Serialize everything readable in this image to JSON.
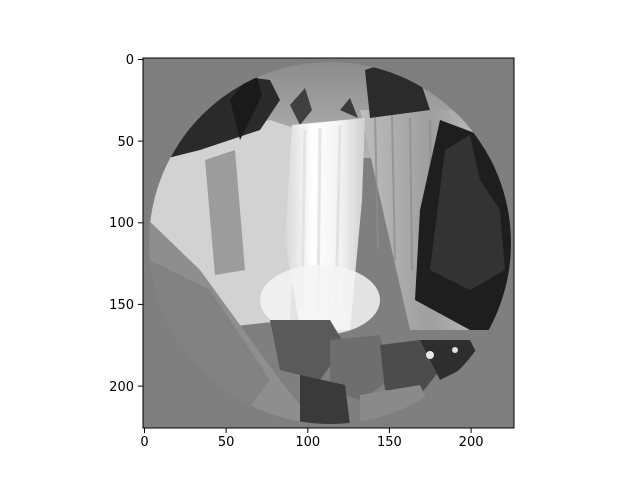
{
  "image": {
    "subject": "waterfall",
    "colormap": "grayscale",
    "background_color": "#7f7f7f",
    "mask": "circle"
  },
  "axes": {
    "x_ticks": [
      "0",
      "50",
      "100",
      "150",
      "200"
    ],
    "y_ticks": [
      "0",
      "50",
      "100",
      "150",
      "200"
    ],
    "xlim": [
      0,
      227
    ],
    "ylim": [
      227,
      0
    ]
  }
}
